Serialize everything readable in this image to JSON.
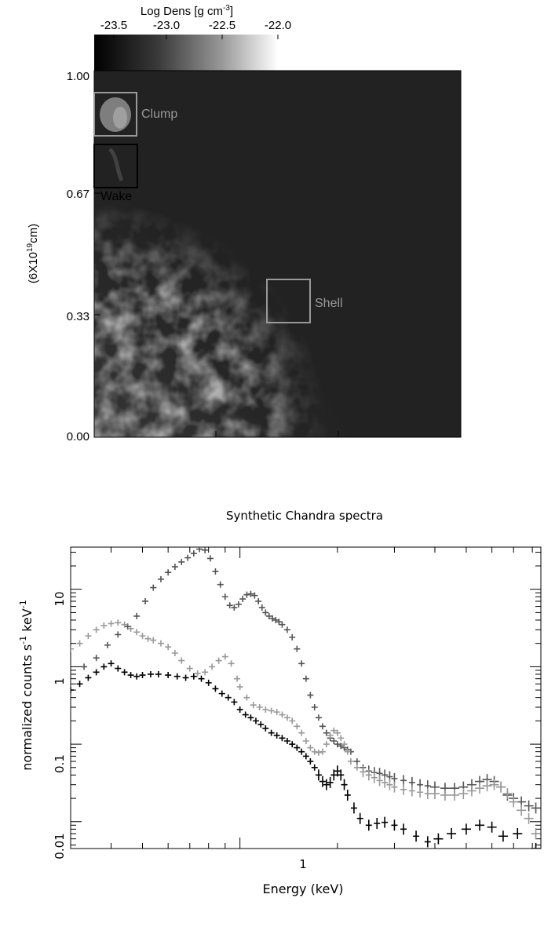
{
  "colorbar": {
    "label": "Log Dens [g cm",
    "label_exp": "-3",
    "label_close": "]",
    "ticks": [
      "-23.5",
      "-23.0",
      "-22.5",
      "-22.0"
    ],
    "range": [
      -23.7,
      -21.9
    ]
  },
  "density_map": {
    "ylabel": "(6X10",
    "ylabel_exp": "19",
    "ylabel_unit": "cm)",
    "y_ticks": [
      "1.00",
      "0.67",
      "0.33",
      "0.00"
    ],
    "regions": [
      {
        "label": "Clump",
        "color": "#999999"
      },
      {
        "label": "Wake",
        "color": "#000000"
      },
      {
        "label": "Shell",
        "color": "#999999"
      }
    ]
  },
  "spectrum_plot": {
    "title": "Synthetic Chandra spectra",
    "xlabel": "Energy (keV)",
    "ylabel": "normalized counts s",
    "ylabel_exp1": "-1",
    "ylabel_mid": " keV",
    "ylabel_exp2": "-1",
    "x_tick_labels": [
      "1"
    ],
    "y_tick_labels": [
      "10",
      "1",
      "0.1",
      "0.01"
    ]
  },
  "chart_data": {
    "type": "scatter",
    "title": "Synthetic Chandra spectra",
    "xlabel": "Energy (keV)",
    "ylabel": "normalized counts s^-1 keV^-1",
    "xscale": "log",
    "yscale": "log",
    "xlim": [
      0.3,
      8.5
    ],
    "ylim": [
      0.0045,
      35
    ],
    "series": [
      {
        "color": "#555555",
        "x": [
          0.3,
          0.33,
          0.36,
          0.39,
          0.42,
          0.45,
          0.48,
          0.51,
          0.54,
          0.57,
          0.6,
          0.63,
          0.66,
          0.69,
          0.72,
          0.75,
          0.78,
          0.81,
          0.84,
          0.87,
          0.9,
          0.93,
          0.96,
          0.99,
          1.02,
          1.05,
          1.08,
          1.11,
          1.14,
          1.17,
          1.2,
          1.23,
          1.26,
          1.29,
          1.32,
          1.35,
          1.4,
          1.45,
          1.5,
          1.55,
          1.6,
          1.65,
          1.7,
          1.75,
          1.8,
          1.85,
          1.9,
          1.95,
          2.0,
          2.05,
          2.1,
          2.15,
          2.2,
          2.3,
          2.4,
          2.5,
          2.6,
          2.7,
          2.8,
          2.9,
          3.0,
          3.2,
          3.4,
          3.6,
          3.8,
          4.0,
          4.3,
          4.6,
          4.9,
          5.2,
          5.5,
          5.8,
          6.1,
          6.4,
          6.7,
          7.0,
          7.4,
          7.8,
          8.2
        ],
        "y": [
          0.8,
          1.0,
          1.3,
          1.9,
          2.6,
          3.3,
          4.5,
          7.0,
          10.5,
          13.5,
          16.5,
          19.5,
          22.5,
          25.5,
          29.0,
          33.0,
          32.0,
          25.0,
          17.0,
          11.5,
          8.0,
          6.2,
          5.8,
          6.4,
          7.5,
          8.5,
          8.7,
          8.3,
          7.0,
          5.8,
          5.0,
          4.5,
          4.2,
          4.0,
          3.8,
          3.5,
          3.0,
          2.4,
          1.7,
          1.1,
          0.7,
          0.43,
          0.3,
          0.22,
          0.17,
          0.14,
          0.12,
          0.11,
          0.1,
          0.095,
          0.09,
          0.085,
          0.08,
          0.06,
          0.05,
          0.045,
          0.043,
          0.042,
          0.04,
          0.038,
          0.036,
          0.034,
          0.032,
          0.03,
          0.029,
          0.028,
          0.027,
          0.027,
          0.028,
          0.03,
          0.033,
          0.035,
          0.033,
          0.028,
          0.022,
          0.02,
          0.018,
          0.016,
          0.015
        ]
      },
      {
        "color": "#999999",
        "x": [
          0.3,
          0.32,
          0.34,
          0.36,
          0.38,
          0.4,
          0.42,
          0.44,
          0.46,
          0.48,
          0.5,
          0.52,
          0.54,
          0.57,
          0.6,
          0.63,
          0.66,
          0.7,
          0.74,
          0.78,
          0.82,
          0.86,
          0.9,
          0.94,
          0.98,
          1.0,
          1.05,
          1.1,
          1.15,
          1.2,
          1.25,
          1.3,
          1.35,
          1.4,
          1.45,
          1.5,
          1.55,
          1.6,
          1.65,
          1.7,
          1.75,
          1.8,
          1.85,
          1.9,
          1.95,
          2.0,
          2.05,
          2.1,
          2.15,
          2.2,
          2.3,
          2.4,
          2.5,
          2.6,
          2.7,
          2.8,
          2.9,
          3.0,
          3.2,
          3.4,
          3.6,
          3.8,
          4.0,
          4.3,
          4.6,
          4.9,
          5.2,
          5.5,
          5.8,
          6.1,
          6.4,
          6.7,
          7.0,
          7.4,
          7.8,
          8.2
        ],
        "y": [
          1.7,
          2.0,
          2.5,
          3.0,
          3.4,
          3.6,
          3.7,
          3.5,
          3.1,
          2.8,
          2.5,
          2.3,
          2.2,
          2.0,
          1.8,
          1.5,
          1.2,
          0.95,
          0.82,
          0.85,
          1.0,
          1.2,
          1.35,
          1.1,
          0.7,
          0.55,
          0.4,
          0.32,
          0.3,
          0.28,
          0.27,
          0.26,
          0.24,
          0.22,
          0.2,
          0.17,
          0.14,
          0.11,
          0.09,
          0.08,
          0.078,
          0.08,
          0.1,
          0.13,
          0.15,
          0.14,
          0.12,
          0.1,
          0.08,
          0.06,
          0.05,
          0.044,
          0.04,
          0.037,
          0.034,
          0.032,
          0.03,
          0.028,
          0.026,
          0.025,
          0.024,
          0.023,
          0.023,
          0.022,
          0.022,
          0.023,
          0.025,
          0.027,
          0.029,
          0.03,
          0.028,
          0.023,
          0.018,
          0.014,
          0.011,
          0.007
        ]
      },
      {
        "color": "#000000",
        "x": [
          0.3,
          0.32,
          0.34,
          0.36,
          0.38,
          0.4,
          0.42,
          0.44,
          0.46,
          0.48,
          0.5,
          0.53,
          0.56,
          0.6,
          0.64,
          0.68,
          0.72,
          0.76,
          0.8,
          0.84,
          0.88,
          0.92,
          0.96,
          1.0,
          1.04,
          1.08,
          1.12,
          1.16,
          1.2,
          1.25,
          1.3,
          1.35,
          1.4,
          1.45,
          1.5,
          1.55,
          1.6,
          1.65,
          1.7,
          1.75,
          1.8,
          1.85,
          1.9,
          1.95,
          2.0,
          2.05,
          2.1,
          2.15,
          2.25,
          2.35,
          2.5,
          2.65,
          2.8,
          3.0,
          3.2,
          3.5,
          3.8,
          4.1,
          4.5,
          5.0,
          5.5,
          6.0,
          6.5,
          7.2,
          8.2
        ],
        "y": [
          0.5,
          0.6,
          0.72,
          0.85,
          1.0,
          1.1,
          0.95,
          0.85,
          0.78,
          0.75,
          0.78,
          0.8,
          0.8,
          0.78,
          0.75,
          0.72,
          0.75,
          0.7,
          0.62,
          0.52,
          0.45,
          0.4,
          0.35,
          0.28,
          0.24,
          0.22,
          0.2,
          0.18,
          0.16,
          0.14,
          0.13,
          0.12,
          0.11,
          0.1,
          0.09,
          0.08,
          0.07,
          0.06,
          0.05,
          0.04,
          0.033,
          0.03,
          0.032,
          0.04,
          0.045,
          0.04,
          0.03,
          0.022,
          0.015,
          0.011,
          0.009,
          0.0095,
          0.0098,
          0.009,
          0.008,
          0.0065,
          0.0055,
          0.006,
          0.007,
          0.008,
          0.009,
          0.0085,
          0.0065,
          0.007,
          0.0045
        ]
      }
    ]
  }
}
